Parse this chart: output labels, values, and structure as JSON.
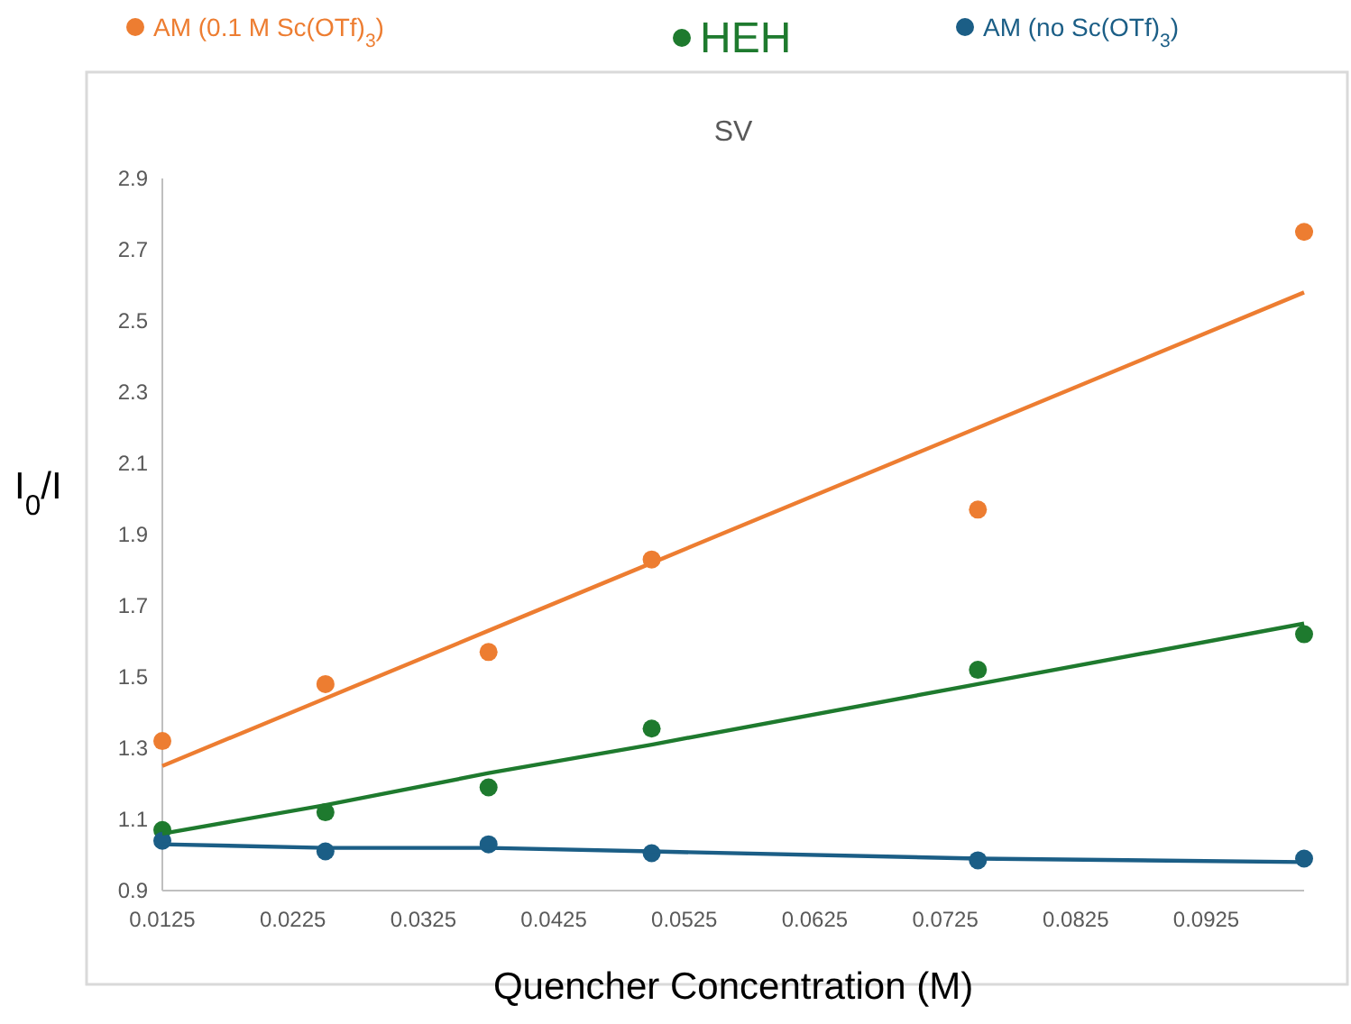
{
  "chart_data": {
    "type": "scatter",
    "title": "SV",
    "xlabel": "Quencher Concentration (M)",
    "ylabel": "I$_{0}$/I",
    "x": [
      0.0125,
      0.025,
      0.0375,
      0.05,
      0.075,
      0.1
    ],
    "xlim": [
      0.0125,
      0.1
    ],
    "xticks": [
      0.0125,
      0.0225,
      0.0325,
      0.0425,
      0.0525,
      0.0625,
      0.0725,
      0.0825,
      0.0925
    ],
    "ylim": [
      0.9,
      2.9
    ],
    "yticks": [
      0.9,
      1.1,
      1.3,
      1.5,
      1.7,
      1.9,
      2.1,
      2.3,
      2.5,
      2.7,
      2.9
    ],
    "grid": false,
    "legend": "top",
    "marker": "circle",
    "series": [
      {
        "name": "AM (0.1 M Sc(OTf)$_{3}$)",
        "color": "#ed7d31",
        "values": [
          1.32,
          1.48,
          1.57,
          1.83,
          1.97,
          2.75
        ]
      },
      {
        "name": "HEH",
        "color": "#1e7a2e",
        "values": [
          1.07,
          1.12,
          1.19,
          1.355,
          1.52,
          1.62
        ]
      },
      {
        "name": "AM (no Sc(OTf)$_{3}$)",
        "color": "#1b5e86",
        "values": [
          1.04,
          1.01,
          1.03,
          1.005,
          0.985,
          0.99
        ]
      },
      {
        "type": "line",
        "color": "#ed7d31",
        "values": [
          1.25,
          1.44,
          1.63,
          1.82,
          2.2,
          2.58
        ],
        "marker": "none"
      },
      {
        "type": "line",
        "color": "#1e7a2e",
        "values": [
          1.06,
          1.14,
          1.23,
          1.31,
          1.48,
          1.65
        ],
        "marker": "none"
      },
      {
        "type": "line",
        "color": "#1b5e86",
        "values": [
          1.03,
          1.02,
          1.02,
          1.01,
          0.99,
          0.98
        ],
        "marker": "none"
      }
    ]
  }
}
